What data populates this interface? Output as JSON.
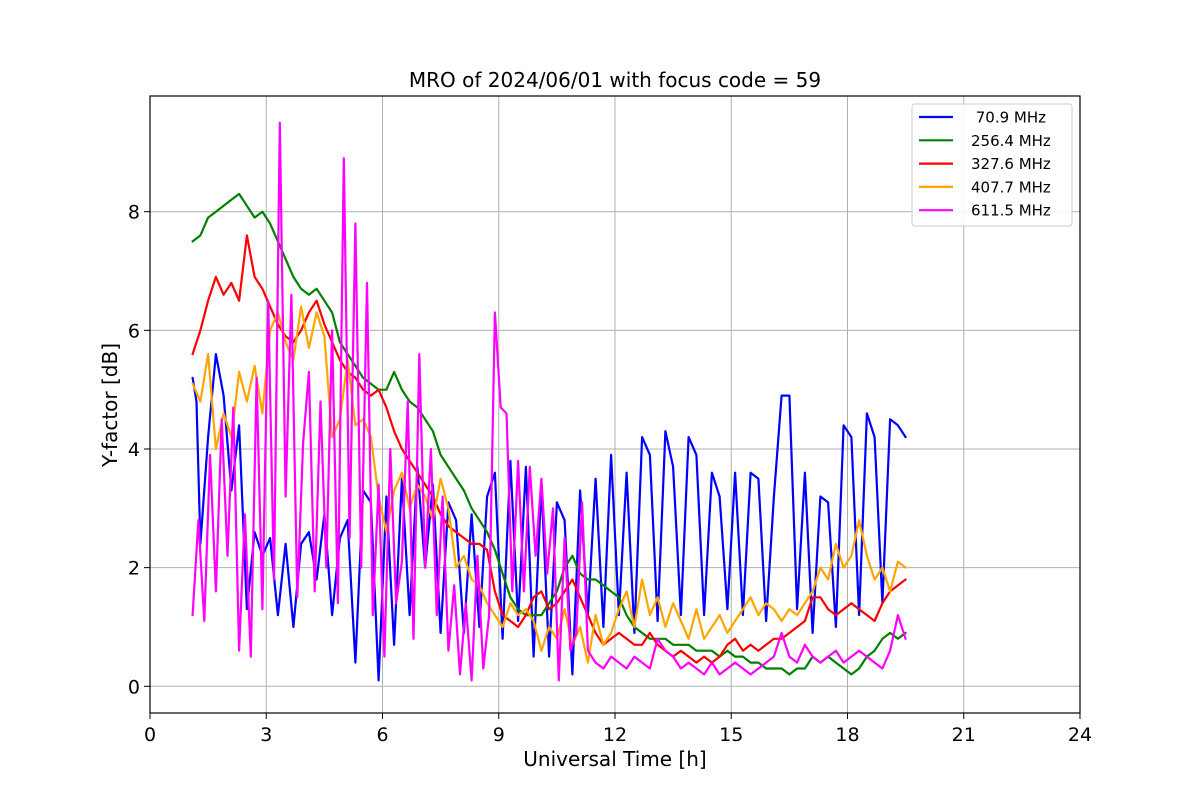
{
  "chart_data": {
    "type": "line",
    "title": "MRO of 2024/06/01 with focus code = 59",
    "xlabel": "Universal Time [h]",
    "ylabel": "Y-factor [dB]",
    "xlim": [
      0,
      24
    ],
    "ylim": [
      -0.45,
      9.95
    ],
    "xticks": [
      0,
      3,
      6,
      9,
      12,
      15,
      18,
      21,
      24
    ],
    "yticks": [
      0,
      2,
      4,
      6,
      8
    ],
    "grid": true,
    "legend_position": "top-right",
    "series": [
      {
        "name": " 70.9 MHz",
        "color": "#0000ff",
        "x": [
          1.1,
          1.2,
          1.3,
          1.5,
          1.7,
          1.9,
          2.1,
          2.3,
          2.5,
          2.7,
          2.9,
          3.1,
          3.3,
          3.5,
          3.7,
          3.9,
          4.1,
          4.3,
          4.5,
          4.7,
          4.9,
          5.1,
          5.3,
          5.5,
          5.7,
          5.9,
          6.1,
          6.3,
          6.5,
          6.7,
          6.9,
          7.1,
          7.3,
          7.5,
          7.7,
          7.9,
          8.1,
          8.3,
          8.5,
          8.7,
          8.9,
          9.1,
          9.3,
          9.5,
          9.7,
          9.9,
          10.1,
          10.3,
          10.5,
          10.7,
          10.9,
          11.1,
          11.3,
          11.5,
          11.7,
          11.9,
          12.1,
          12.3,
          12.5,
          12.7,
          12.9,
          13.1,
          13.3,
          13.5,
          13.7,
          13.9,
          14.1,
          14.3,
          14.5,
          14.7,
          14.9,
          15.1,
          15.3,
          15.5,
          15.7,
          15.9,
          16.1,
          16.3,
          16.5,
          16.7,
          16.9,
          17.1,
          17.3,
          17.5,
          17.7,
          17.9,
          18.1,
          18.3,
          18.5,
          18.7,
          18.9,
          19.1,
          19.3,
          19.5
        ],
        "values": [
          5.2,
          4.8,
          2.4,
          4.2,
          5.6,
          4.9,
          3.3,
          4.4,
          1.3,
          2.6,
          2.2,
          2.5,
          1.2,
          2.4,
          1.0,
          2.4,
          2.6,
          1.8,
          2.9,
          1.2,
          2.5,
          2.8,
          0.4,
          3.3,
          3.1,
          0.1,
          3.2,
          0.7,
          3.5,
          1.2,
          3.7,
          2.0,
          3.4,
          0.9,
          3.1,
          2.8,
          0.9,
          2.9,
          1.0,
          3.2,
          3.6,
          0.8,
          3.8,
          1.1,
          3.7,
          0.5,
          3.4,
          0.5,
          3.1,
          2.8,
          0.2,
          3.3,
          1.2,
          3.5,
          1.0,
          3.9,
          1.2,
          3.6,
          0.9,
          4.2,
          3.9,
          1.1,
          4.3,
          3.7,
          1.2,
          4.2,
          3.9,
          1.2,
          3.6,
          3.2,
          1.3,
          3.6,
          1.2,
          3.6,
          3.5,
          1.1,
          3.2,
          4.9,
          4.9,
          1.3,
          3.6,
          0.9,
          3.2,
          3.1,
          1.0,
          4.4,
          4.2,
          1.2,
          4.6,
          4.2,
          1.4,
          4.5,
          4.4,
          4.2
        ]
      },
      {
        "name": "256.4 MHz",
        "color": "#008000",
        "x": [
          1.1,
          1.3,
          1.5,
          1.7,
          1.9,
          2.1,
          2.3,
          2.5,
          2.7,
          2.9,
          3.1,
          3.3,
          3.5,
          3.7,
          3.9,
          4.1,
          4.3,
          4.5,
          4.7,
          4.9,
          5.1,
          5.3,
          5.5,
          5.7,
          5.9,
          6.1,
          6.3,
          6.5,
          6.7,
          6.9,
          7.1,
          7.3,
          7.5,
          7.7,
          7.9,
          8.1,
          8.3,
          8.5,
          8.7,
          8.9,
          9.1,
          9.3,
          9.5,
          9.7,
          9.9,
          10.1,
          10.3,
          10.5,
          10.7,
          10.9,
          11.1,
          11.3,
          11.5,
          11.7,
          11.9,
          12.1,
          12.3,
          12.5,
          12.7,
          12.9,
          13.1,
          13.3,
          13.5,
          13.7,
          13.9,
          14.1,
          14.3,
          14.5,
          14.7,
          14.9,
          15.1,
          15.3,
          15.5,
          15.7,
          15.9,
          16.1,
          16.3,
          16.5,
          16.7,
          16.9,
          17.1,
          17.3,
          17.5,
          17.7,
          17.9,
          18.1,
          18.3,
          18.5,
          18.7,
          18.9,
          19.1,
          19.3,
          19.5
        ],
        "values": [
          7.5,
          7.6,
          7.9,
          8.0,
          8.1,
          8.2,
          8.3,
          8.1,
          7.9,
          8.0,
          7.8,
          7.5,
          7.2,
          6.9,
          6.7,
          6.6,
          6.7,
          6.5,
          6.3,
          5.8,
          5.6,
          5.4,
          5.2,
          5.1,
          5.0,
          5.0,
          5.3,
          5.0,
          4.8,
          4.7,
          4.5,
          4.3,
          3.9,
          3.7,
          3.5,
          3.3,
          3.0,
          2.8,
          2.6,
          2.3,
          1.9,
          1.5,
          1.3,
          1.2,
          1.2,
          1.2,
          1.4,
          1.6,
          2.0,
          2.2,
          1.9,
          1.8,
          1.8,
          1.7,
          1.6,
          1.5,
          1.2,
          1.0,
          0.9,
          0.8,
          0.8,
          0.8,
          0.7,
          0.7,
          0.7,
          0.6,
          0.6,
          0.6,
          0.5,
          0.6,
          0.5,
          0.5,
          0.4,
          0.4,
          0.3,
          0.3,
          0.3,
          0.2,
          0.3,
          0.3,
          0.5,
          0.4,
          0.5,
          0.4,
          0.3,
          0.2,
          0.3,
          0.5,
          0.6,
          0.8,
          0.9,
          0.8,
          0.9
        ]
      },
      {
        "name": "327.6 MHz",
        "color": "#ff0000",
        "x": [
          1.1,
          1.3,
          1.5,
          1.7,
          1.9,
          2.1,
          2.3,
          2.5,
          2.7,
          2.9,
          3.1,
          3.3,
          3.5,
          3.7,
          3.9,
          4.1,
          4.3,
          4.5,
          4.7,
          4.9,
          5.1,
          5.3,
          5.5,
          5.7,
          5.9,
          6.1,
          6.3,
          6.5,
          6.7,
          6.9,
          7.1,
          7.3,
          7.5,
          7.7,
          7.9,
          8.1,
          8.3,
          8.5,
          8.7,
          8.9,
          9.1,
          9.3,
          9.5,
          9.7,
          9.9,
          10.1,
          10.3,
          10.5,
          10.7,
          10.9,
          11.1,
          11.3,
          11.5,
          11.7,
          11.9,
          12.1,
          12.3,
          12.5,
          12.7,
          12.9,
          13.1,
          13.3,
          13.5,
          13.7,
          13.9,
          14.1,
          14.3,
          14.5,
          14.7,
          14.9,
          15.1,
          15.3,
          15.5,
          15.7,
          15.9,
          16.1,
          16.3,
          16.5,
          16.7,
          16.9,
          17.1,
          17.3,
          17.5,
          17.7,
          17.9,
          18.1,
          18.3,
          18.5,
          18.7,
          18.9,
          19.1,
          19.3,
          19.5
        ],
        "values": [
          5.6,
          6.0,
          6.5,
          6.9,
          6.6,
          6.8,
          6.5,
          7.6,
          6.9,
          6.7,
          6.4,
          6.1,
          5.9,
          5.8,
          6.0,
          6.3,
          6.5,
          6.1,
          5.8,
          5.5,
          5.3,
          5.2,
          5.0,
          4.9,
          5.0,
          4.7,
          4.3,
          4.0,
          3.8,
          3.6,
          3.4,
          3.2,
          2.9,
          2.7,
          2.6,
          2.5,
          2.4,
          2.4,
          2.3,
          1.6,
          1.2,
          1.1,
          1.0,
          1.2,
          1.5,
          1.6,
          1.3,
          1.4,
          1.6,
          1.8,
          1.5,
          1.2,
          0.9,
          0.7,
          0.8,
          0.9,
          0.8,
          0.7,
          0.7,
          0.9,
          0.7,
          0.6,
          0.5,
          0.6,
          0.5,
          0.4,
          0.5,
          0.4,
          0.5,
          0.7,
          0.8,
          0.6,
          0.7,
          0.6,
          0.7,
          0.8,
          0.8,
          0.9,
          1.0,
          1.1,
          1.5,
          1.5,
          1.3,
          1.2,
          1.3,
          1.4,
          1.3,
          1.2,
          1.1,
          1.4,
          1.6,
          1.7,
          1.8
        ]
      },
      {
        "name": "407.7 MHz",
        "color": "#ffa500",
        "x": [
          1.1,
          1.3,
          1.5,
          1.7,
          1.9,
          2.1,
          2.3,
          2.5,
          2.7,
          2.9,
          3.1,
          3.3,
          3.5,
          3.7,
          3.9,
          4.1,
          4.3,
          4.5,
          4.7,
          4.9,
          5.1,
          5.3,
          5.5,
          5.7,
          5.9,
          6.1,
          6.3,
          6.5,
          6.7,
          6.9,
          7.1,
          7.3,
          7.5,
          7.7,
          7.9,
          8.1,
          8.3,
          8.5,
          8.7,
          8.9,
          9.1,
          9.3,
          9.5,
          9.7,
          9.9,
          10.1,
          10.3,
          10.5,
          10.7,
          10.9,
          11.1,
          11.3,
          11.5,
          11.7,
          11.9,
          12.1,
          12.3,
          12.5,
          12.7,
          12.9,
          13.1,
          13.3,
          13.5,
          13.7,
          13.9,
          14.1,
          14.3,
          14.5,
          14.7,
          14.9,
          15.1,
          15.3,
          15.5,
          15.7,
          15.9,
          16.1,
          16.3,
          16.5,
          16.7,
          16.9,
          17.1,
          17.3,
          17.5,
          17.7,
          17.9,
          18.1,
          18.3,
          18.5,
          18.7,
          18.9,
          19.1,
          19.3,
          19.5
        ],
        "values": [
          5.1,
          4.8,
          5.6,
          4.0,
          4.6,
          4.2,
          5.3,
          4.8,
          5.4,
          4.6,
          6.0,
          6.3,
          5.8,
          5.5,
          6.4,
          5.7,
          6.3,
          5.9,
          4.2,
          4.5,
          5.5,
          4.4,
          4.5,
          4.2,
          3.2,
          2.6,
          3.3,
          3.6,
          3.0,
          3.4,
          3.2,
          2.8,
          3.5,
          3.0,
          2.0,
          2.2,
          1.8,
          1.7,
          1.4,
          1.2,
          1.0,
          1.4,
          1.2,
          1.3,
          1.1,
          0.6,
          1.0,
          0.8,
          1.3,
          0.7,
          1.0,
          0.4,
          1.2,
          0.7,
          0.9,
          1.3,
          1.6,
          1.0,
          1.8,
          1.2,
          1.5,
          1.0,
          1.4,
          1.1,
          0.8,
          1.3,
          0.8,
          1.0,
          1.2,
          0.9,
          1.1,
          1.3,
          1.5,
          1.2,
          1.4,
          1.3,
          1.1,
          1.3,
          1.2,
          1.4,
          1.6,
          2.0,
          1.8,
          2.4,
          2.0,
          2.2,
          2.8,
          2.2,
          1.8,
          2.0,
          1.6,
          2.1,
          2.0
        ]
      },
      {
        "name": "611.5 MHz",
        "color": "#ff00ff",
        "x": [
          1.1,
          1.25,
          1.4,
          1.55,
          1.7,
          1.85,
          2.0,
          2.15,
          2.3,
          2.45,
          2.6,
          2.75,
          2.9,
          3.05,
          3.2,
          3.35,
          3.5,
          3.65,
          3.8,
          3.95,
          4.1,
          4.25,
          4.4,
          4.55,
          4.7,
          4.85,
          5.0,
          5.15,
          5.3,
          5.45,
          5.6,
          5.75,
          5.9,
          6.05,
          6.2,
          6.35,
          6.5,
          6.65,
          6.8,
          6.95,
          7.1,
          7.25,
          7.4,
          7.55,
          7.7,
          7.85,
          8.0,
          8.15,
          8.3,
          8.45,
          8.6,
          8.75,
          8.9,
          9.05,
          9.2,
          9.35,
          9.5,
          9.65,
          9.8,
          9.95,
          10.1,
          10.25,
          10.4,
          10.55,
          10.7,
          10.85,
          11.0,
          11.15,
          11.3,
          11.5,
          11.7,
          11.9,
          12.1,
          12.3,
          12.5,
          12.7,
          12.9,
          13.1,
          13.3,
          13.5,
          13.7,
          13.9,
          14.1,
          14.3,
          14.5,
          14.7,
          14.9,
          15.1,
          15.3,
          15.5,
          15.7,
          15.9,
          16.1,
          16.3,
          16.5,
          16.7,
          16.9,
          17.1,
          17.3,
          17.5,
          17.7,
          17.9,
          18.1,
          18.3,
          18.5,
          18.7,
          18.9,
          19.1,
          19.3,
          19.5
        ],
        "values": [
          1.2,
          2.8,
          1.1,
          3.9,
          1.6,
          4.5,
          2.2,
          4.7,
          0.6,
          2.9,
          0.5,
          5.2,
          1.3,
          6.5,
          1.8,
          9.5,
          3.2,
          6.6,
          1.5,
          4.1,
          5.3,
          1.6,
          4.8,
          2.0,
          6.0,
          1.4,
          8.9,
          2.5,
          7.8,
          2.0,
          6.8,
          1.2,
          3.4,
          0.5,
          4.0,
          1.4,
          2.1,
          4.8,
          0.8,
          5.6,
          2.0,
          4.0,
          1.2,
          3.2,
          0.6,
          1.7,
          0.2,
          1.4,
          0.1,
          2.2,
          0.3,
          1.2,
          6.3,
          4.7,
          4.6,
          1.6,
          3.8,
          1.6,
          3.7,
          2.2,
          3.5,
          1.9,
          3.0,
          0.1,
          2.5,
          0.6,
          0.9,
          3.1,
          0.6,
          0.4,
          0.3,
          0.5,
          0.4,
          0.3,
          0.5,
          0.4,
          0.3,
          0.8,
          0.6,
          0.5,
          0.3,
          0.4,
          0.3,
          0.2,
          0.4,
          0.2,
          0.3,
          0.4,
          0.3,
          0.2,
          0.3,
          0.4,
          0.5,
          0.9,
          0.5,
          0.4,
          0.7,
          0.5,
          0.4,
          0.5,
          0.6,
          0.4,
          0.5,
          0.6,
          0.5,
          0.4,
          0.3,
          0.6,
          1.2,
          0.8
        ]
      }
    ]
  }
}
